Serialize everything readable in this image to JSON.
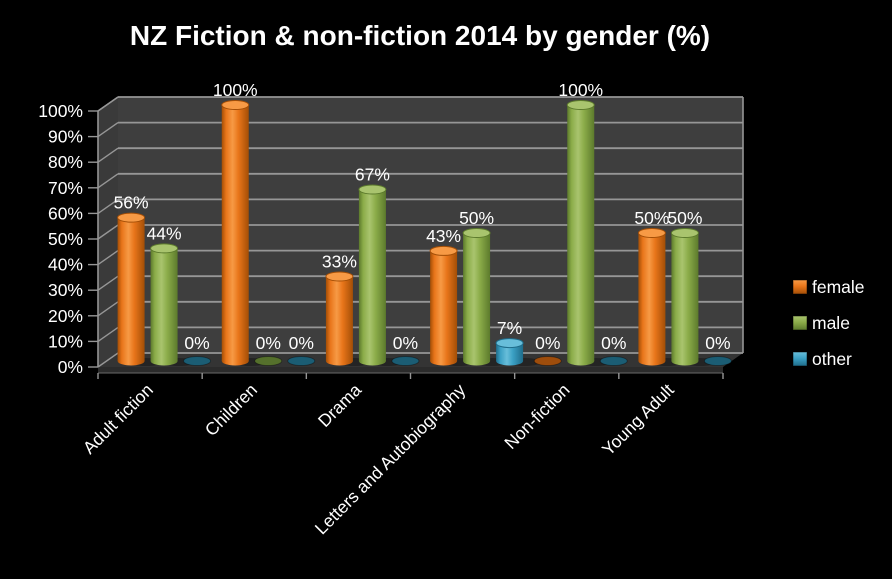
{
  "chart_data": {
    "type": "bar",
    "style": "3d-cylinder",
    "title": "NZ Fiction & non-fiction 2014 by gender (%)",
    "categories": [
      "Adult fiction",
      "Children",
      "Drama",
      "Letters and Autobiography",
      "Non-fiction",
      "Young Adult"
    ],
    "series": [
      {
        "name": "female",
        "color": "#E8751A",
        "color_dark": "#A34E06",
        "color_light": "#F79A45",
        "color_flat": "#9E4D0C",
        "values": [
          56,
          100,
          33,
          43,
          0,
          50
        ]
      },
      {
        "name": "male",
        "color": "#8BAC49",
        "color_dark": "#5C7A2C",
        "color_light": "#A9C46E",
        "color_flat": "#55702C",
        "values": [
          44,
          0,
          67,
          50,
          100,
          50
        ]
      },
      {
        "name": "other",
        "color": "#3BA0C4",
        "color_dark": "#1E6C8A",
        "color_light": "#68BEDA",
        "color_flat": "#1B5D74",
        "values": [
          0,
          0,
          0,
          7,
          0,
          0
        ]
      }
    ],
    "data_labels": true,
    "data_label_format": "{v}%",
    "xlabel": "",
    "ylabel": "",
    "ylim": [
      0,
      100
    ],
    "ytick_step": 10,
    "ytick_labels": [
      "0%",
      "10%",
      "20%",
      "30%",
      "40%",
      "50%",
      "60%",
      "70%",
      "80%",
      "90%",
      "100%"
    ],
    "legend_position": "right",
    "grid": true,
    "background": "#000000",
    "wall_color": "#3E3E3E",
    "left_wall_color": "#3A3A3A",
    "floor_color": "#343434",
    "floor_edge_color": "#2B2B2B",
    "gridline_color": "#969696",
    "text_color": "#FFFFFF"
  }
}
